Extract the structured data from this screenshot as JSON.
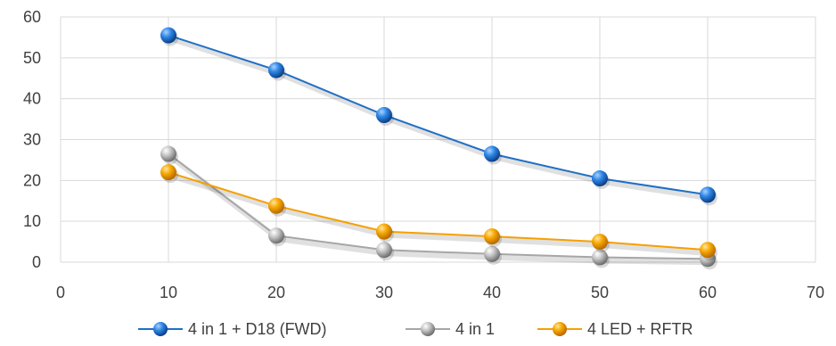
{
  "chart_data": {
    "type": "line",
    "title": "",
    "xlabel": "",
    "ylabel": "",
    "xlim": [
      0,
      70
    ],
    "ylim": [
      0,
      60
    ],
    "xticks": [
      0,
      10,
      20,
      30,
      40,
      50,
      60,
      70
    ],
    "yticks": [
      0,
      10,
      20,
      30,
      40,
      50,
      60
    ],
    "x": [
      10,
      20,
      30,
      40,
      50,
      60
    ],
    "grid": true,
    "legend_position": "bottom",
    "series": [
      {
        "name": "4 in 1 + D18 (FWD)",
        "color": "#1f6fc6",
        "values": [
          55.5,
          47,
          36,
          26.5,
          20.5,
          16.5
        ]
      },
      {
        "name": "4 in 1",
        "color": "#a6a6a6",
        "values": [
          26.5,
          6.5,
          3,
          2,
          1.2,
          0.8
        ]
      },
      {
        "name": "4 LED + RFTR",
        "color": "#f5a000",
        "values": [
          22,
          13.8,
          7.5,
          6.3,
          5,
          3
        ]
      }
    ]
  }
}
